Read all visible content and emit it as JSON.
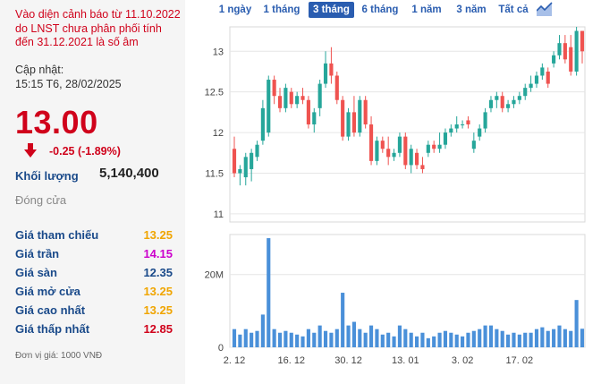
{
  "alert_text": "Vào diện cảnh báo từ 11.10.2022 do LNST chưa phân phối tính đến 31.12.2021 là số âm",
  "update_label": "Cập nhật:",
  "update_time": "15:15 T6, 28/02/2025",
  "price": "13.00",
  "change": "-0.25 (-1.89%)",
  "volume_label": "Khối lượng",
  "volume_value": "5,140,400",
  "status": "Đóng cửa",
  "stats": [
    {
      "label": "Giá tham chiếu",
      "value": "13.25",
      "color": "#f0a500"
    },
    {
      "label": "Giá trần",
      "value": "14.15",
      "color": "#cc00cc"
    },
    {
      "label": "Giá sàn",
      "value": "12.35",
      "color": "#1a4a8a"
    },
    {
      "label": "Giá mở cửa",
      "value": "13.25",
      "color": "#f0a500"
    },
    {
      "label": "Giá cao nhất",
      "value": "13.25",
      "color": "#f0a500"
    },
    {
      "label": "Giá thấp nhất",
      "value": "12.85",
      "color": "#d0021b"
    }
  ],
  "unit_note": "Đơn vị giá: 1000 VNĐ",
  "tabs": [
    "1 ngày",
    "1 tháng",
    "3 tháng",
    "6 tháng",
    "1 năm",
    "3 năm",
    "Tất cả"
  ],
  "active_tab": "3 tháng",
  "colors": {
    "up": "#26a69a",
    "down": "#ef5350",
    "volume": "#4a90d9",
    "accent": "#2a5db0",
    "alert": "#d0021b"
  },
  "chart_data": {
    "type": "candlestick",
    "price_ticks": [
      "11",
      "11.5",
      "12",
      "12.5",
      "13"
    ],
    "price_range": [
      10.9,
      13.3
    ],
    "volume_ticks": [
      "0",
      "20M"
    ],
    "volume_range": [
      0,
      31
    ],
    "x_labels": [
      "2. 12",
      "16. 12",
      "30. 12",
      "13. 01",
      "3. 02",
      "17. 02"
    ],
    "x_label_index": [
      0,
      10,
      20,
      30,
      40,
      50
    ],
    "candles": [
      {
        "o": 11.8,
        "h": 11.95,
        "l": 11.45,
        "c": 11.5,
        "v": 5
      },
      {
        "o": 11.5,
        "h": 11.6,
        "l": 11.35,
        "c": 11.55,
        "v": 3.5
      },
      {
        "o": 11.45,
        "h": 11.75,
        "l": 11.35,
        "c": 11.7,
        "v": 5
      },
      {
        "o": 11.55,
        "h": 11.8,
        "l": 11.4,
        "c": 11.75,
        "v": 4
      },
      {
        "o": 11.7,
        "h": 11.9,
        "l": 11.65,
        "c": 11.85,
        "v": 4.5
      },
      {
        "o": 11.9,
        "h": 12.4,
        "l": 11.85,
        "c": 12.3,
        "v": 9
      },
      {
        "o": 12.0,
        "h": 12.7,
        "l": 11.95,
        "c": 12.65,
        "v": 30
      },
      {
        "o": 12.65,
        "h": 12.7,
        "l": 12.35,
        "c": 12.45,
        "v": 5
      },
      {
        "o": 12.45,
        "h": 12.55,
        "l": 12.25,
        "c": 12.3,
        "v": 4
      },
      {
        "o": 12.3,
        "h": 12.6,
        "l": 12.25,
        "c": 12.55,
        "v": 4.5
      },
      {
        "o": 12.5,
        "h": 12.55,
        "l": 12.3,
        "c": 12.35,
        "v": 4
      },
      {
        "o": 12.35,
        "h": 12.5,
        "l": 12.3,
        "c": 12.45,
        "v": 3.5
      },
      {
        "o": 12.45,
        "h": 12.55,
        "l": 12.35,
        "c": 12.4,
        "v": 3
      },
      {
        "o": 12.4,
        "h": 12.45,
        "l": 12.05,
        "c": 12.1,
        "v": 5
      },
      {
        "o": 12.1,
        "h": 12.3,
        "l": 12.0,
        "c": 12.25,
        "v": 4
      },
      {
        "o": 12.3,
        "h": 12.65,
        "l": 12.2,
        "c": 12.6,
        "v": 6
      },
      {
        "o": 12.6,
        "h": 13.0,
        "l": 12.55,
        "c": 12.85,
        "v": 4.5
      },
      {
        "o": 12.85,
        "h": 13.05,
        "l": 12.6,
        "c": 12.7,
        "v": 4
      },
      {
        "o": 12.7,
        "h": 12.75,
        "l": 12.35,
        "c": 12.4,
        "v": 5
      },
      {
        "o": 12.4,
        "h": 12.45,
        "l": 11.9,
        "c": 11.95,
        "v": 15
      },
      {
        "o": 11.95,
        "h": 12.3,
        "l": 11.9,
        "c": 12.25,
        "v": 6
      },
      {
        "o": 12.25,
        "h": 12.45,
        "l": 11.95,
        "c": 12.0,
        "v": 7
      },
      {
        "o": 12.0,
        "h": 12.45,
        "l": 11.95,
        "c": 12.4,
        "v": 5
      },
      {
        "o": 12.4,
        "h": 12.45,
        "l": 12.05,
        "c": 12.1,
        "v": 4
      },
      {
        "o": 12.1,
        "h": 12.2,
        "l": 11.6,
        "c": 11.65,
        "v": 6
      },
      {
        "o": 11.65,
        "h": 11.95,
        "l": 11.6,
        "c": 11.9,
        "v": 5
      },
      {
        "o": 11.9,
        "h": 11.95,
        "l": 11.75,
        "c": 11.8,
        "v": 3.5
      },
      {
        "o": 11.8,
        "h": 11.95,
        "l": 11.6,
        "c": 11.7,
        "v": 4
      },
      {
        "o": 11.7,
        "h": 11.8,
        "l": 11.65,
        "c": 11.75,
        "v": 3
      },
      {
        "o": 11.75,
        "h": 12.0,
        "l": 11.7,
        "c": 11.95,
        "v": 6
      },
      {
        "o": 11.95,
        "h": 12.0,
        "l": 11.55,
        "c": 11.6,
        "v": 5
      },
      {
        "o": 11.6,
        "h": 11.85,
        "l": 11.5,
        "c": 11.8,
        "v": 4
      },
      {
        "o": 11.75,
        "h": 11.8,
        "l": 11.55,
        "c": 11.6,
        "v": 3
      },
      {
        "o": 11.6,
        "h": 11.7,
        "l": 11.5,
        "c": 11.55,
        "v": 4
      },
      {
        "o": 11.75,
        "h": 11.9,
        "l": 11.7,
        "c": 11.85,
        "v": 2.5
      },
      {
        "o": 11.85,
        "h": 11.9,
        "l": 11.75,
        "c": 11.8,
        "v": 3
      },
      {
        "o": 11.8,
        "h": 12.0,
        "l": 11.75,
        "c": 11.85,
        "v": 4
      },
      {
        "o": 11.85,
        "h": 12.05,
        "l": 11.8,
        "c": 12.0,
        "v": 4.5
      },
      {
        "o": 12.0,
        "h": 12.1,
        "l": 11.95,
        "c": 12.05,
        "v": 4
      },
      {
        "o": 12.05,
        "h": 12.2,
        "l": 12.0,
        "c": 12.1,
        "v": 3.5
      },
      {
        "o": 12.1,
        "h": 12.15,
        "l": 12.05,
        "c": 12.1,
        "v": 3
      },
      {
        "o": 12.15,
        "h": 12.2,
        "l": 12.05,
        "c": 12.1,
        "v": 4
      },
      {
        "o": 11.8,
        "h": 12.0,
        "l": 11.75,
        "c": 11.9,
        "v": 4.5
      },
      {
        "o": 11.95,
        "h": 12.1,
        "l": 11.9,
        "c": 12.05,
        "v": 5
      },
      {
        "o": 12.05,
        "h": 12.3,
        "l": 12.0,
        "c": 12.25,
        "v": 6
      },
      {
        "o": 12.3,
        "h": 12.45,
        "l": 12.25,
        "c": 12.4,
        "v": 6
      },
      {
        "o": 12.4,
        "h": 12.5,
        "l": 12.3,
        "c": 12.45,
        "v": 5
      },
      {
        "o": 12.45,
        "h": 12.5,
        "l": 12.25,
        "c": 12.3,
        "v": 4.5
      },
      {
        "o": 12.3,
        "h": 12.4,
        "l": 12.25,
        "c": 12.35,
        "v": 3.5
      },
      {
        "o": 12.35,
        "h": 12.45,
        "l": 12.3,
        "c": 12.4,
        "v": 4
      },
      {
        "o": 12.4,
        "h": 12.5,
        "l": 12.35,
        "c": 12.45,
        "v": 3.5
      },
      {
        "o": 12.45,
        "h": 12.6,
        "l": 12.4,
        "c": 12.55,
        "v": 4
      },
      {
        "o": 12.55,
        "h": 12.7,
        "l": 12.5,
        "c": 12.6,
        "v": 4
      },
      {
        "o": 12.6,
        "h": 12.75,
        "l": 12.55,
        "c": 12.7,
        "v": 5
      },
      {
        "o": 12.7,
        "h": 12.85,
        "l": 12.65,
        "c": 12.8,
        "v": 5.5
      },
      {
        "o": 12.75,
        "h": 12.8,
        "l": 12.55,
        "c": 12.6,
        "v": 4.5
      },
      {
        "o": 12.85,
        "h": 13.0,
        "l": 12.8,
        "c": 12.95,
        "v": 5
      },
      {
        "o": 12.95,
        "h": 13.2,
        "l": 12.9,
        "c": 13.1,
        "v": 6
      },
      {
        "o": 13.1,
        "h": 13.2,
        "l": 12.85,
        "c": 12.9,
        "v": 5
      },
      {
        "o": 13.05,
        "h": 13.2,
        "l": 12.7,
        "c": 12.75,
        "v": 4.5
      },
      {
        "o": 12.75,
        "h": 13.3,
        "l": 12.7,
        "c": 13.25,
        "v": 13
      },
      {
        "o": 13.25,
        "h": 13.25,
        "l": 12.85,
        "c": 13.0,
        "v": 5.1
      }
    ]
  }
}
